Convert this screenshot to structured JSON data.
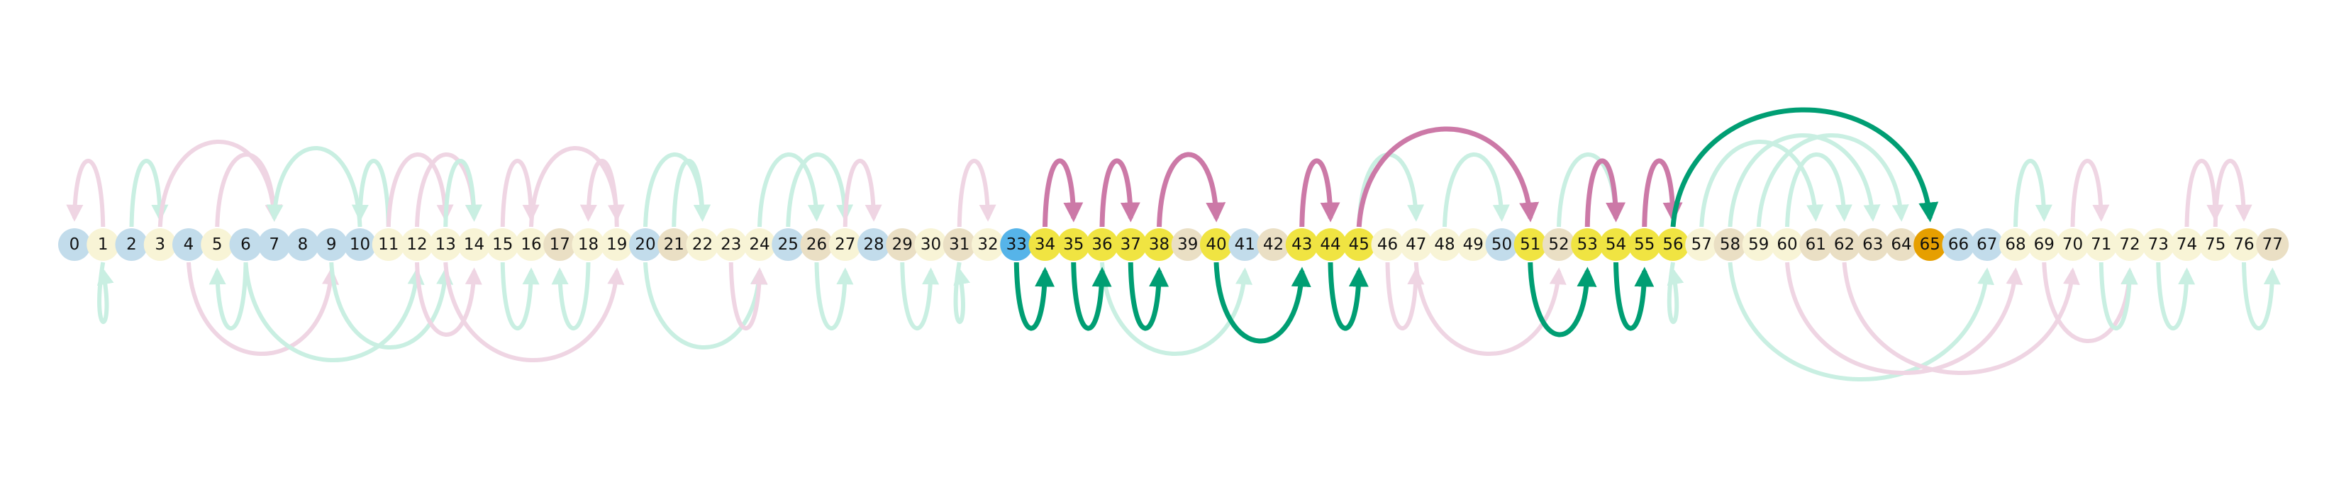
{
  "nodes": [
    {
      "label": "0",
      "type": "blue"
    },
    {
      "label": "1",
      "type": "cream"
    },
    {
      "label": "2",
      "type": "blue"
    },
    {
      "label": "3",
      "type": "cream"
    },
    {
      "label": "4",
      "type": "blue"
    },
    {
      "label": "5",
      "type": "cream"
    },
    {
      "label": "6",
      "type": "blue"
    },
    {
      "label": "7",
      "type": "blue"
    },
    {
      "label": "8",
      "type": "blue"
    },
    {
      "label": "9",
      "type": "blue"
    },
    {
      "label": "10",
      "type": "blue"
    },
    {
      "label": "11",
      "type": "cream"
    },
    {
      "label": "12",
      "type": "cream"
    },
    {
      "label": "13",
      "type": "cream"
    },
    {
      "label": "14",
      "type": "cream"
    },
    {
      "label": "15",
      "type": "cream"
    },
    {
      "label": "16",
      "type": "cream"
    },
    {
      "label": "17",
      "type": "tan"
    },
    {
      "label": "18",
      "type": "cream"
    },
    {
      "label": "19",
      "type": "cream"
    },
    {
      "label": "20",
      "type": "blue"
    },
    {
      "label": "21",
      "type": "tan"
    },
    {
      "label": "22",
      "type": "cream"
    },
    {
      "label": "23",
      "type": "cream"
    },
    {
      "label": "24",
      "type": "cream"
    },
    {
      "label": "25",
      "type": "blue"
    },
    {
      "label": "26",
      "type": "tan"
    },
    {
      "label": "27",
      "type": "cream"
    },
    {
      "label": "28",
      "type": "blue"
    },
    {
      "label": "29",
      "type": "tan"
    },
    {
      "label": "30",
      "type": "cream"
    },
    {
      "label": "31",
      "type": "tan"
    },
    {
      "label": "32",
      "type": "cream"
    },
    {
      "label": "33",
      "type": "start"
    },
    {
      "label": "34",
      "type": "yellow"
    },
    {
      "label": "35",
      "type": "yellow"
    },
    {
      "label": "36",
      "type": "yellow"
    },
    {
      "label": "37",
      "type": "yellow"
    },
    {
      "label": "38",
      "type": "yellow"
    },
    {
      "label": "39",
      "type": "tan"
    },
    {
      "label": "40",
      "type": "yellow"
    },
    {
      "label": "41",
      "type": "blue"
    },
    {
      "label": "42",
      "type": "tan"
    },
    {
      "label": "43",
      "type": "yellow"
    },
    {
      "label": "44",
      "type": "yellow"
    },
    {
      "label": "45",
      "type": "yellow"
    },
    {
      "label": "46",
      "type": "cream"
    },
    {
      "label": "47",
      "type": "cream"
    },
    {
      "label": "48",
      "type": "cream"
    },
    {
      "label": "49",
      "type": "cream"
    },
    {
      "label": "50",
      "type": "blue"
    },
    {
      "label": "51",
      "type": "yellow"
    },
    {
      "label": "52",
      "type": "tan"
    },
    {
      "label": "53",
      "type": "yellow"
    },
    {
      "label": "54",
      "type": "yellow"
    },
    {
      "label": "55",
      "type": "yellow"
    },
    {
      "label": "56",
      "type": "yellow"
    },
    {
      "label": "57",
      "type": "cream"
    },
    {
      "label": "58",
      "type": "tan"
    },
    {
      "label": "59",
      "type": "cream"
    },
    {
      "label": "60",
      "type": "cream"
    },
    {
      "label": "61",
      "type": "tan"
    },
    {
      "label": "62",
      "type": "tan"
    },
    {
      "label": "63",
      "type": "tan"
    },
    {
      "label": "64",
      "type": "tan"
    },
    {
      "label": "65",
      "type": "goal"
    },
    {
      "label": "66",
      "type": "blue"
    },
    {
      "label": "67",
      "type": "blue"
    },
    {
      "label": "68",
      "type": "cream"
    },
    {
      "label": "69",
      "type": "cream"
    },
    {
      "label": "70",
      "type": "cream"
    },
    {
      "label": "71",
      "type": "cream"
    },
    {
      "label": "72",
      "type": "cream"
    },
    {
      "label": "73",
      "type": "cream"
    },
    {
      "label": "74",
      "type": "cream"
    },
    {
      "label": "75",
      "type": "cream"
    },
    {
      "label": "76",
      "type": "cream"
    },
    {
      "label": "77",
      "type": "tan"
    }
  ],
  "colors": {
    "blue": "#c2dceb",
    "cream": "#f8f4d6",
    "tan": "#eadfc4",
    "yellow": "#f0e442",
    "start": "#56b4e9",
    "goal": "#e69f00",
    "ladder": "#009e73",
    "snake": "#cc79a7",
    "ladder_faded": "#c9efe2",
    "snake_faded": "#efd5e3"
  },
  "edges": [
    {
      "from": 1,
      "to": 0,
      "kind": "snake",
      "active": false
    },
    {
      "from": 2,
      "to": 3,
      "kind": "ladder",
      "active": false
    },
    {
      "from": 5,
      "to": 7,
      "kind": "snake",
      "active": false
    },
    {
      "from": 3,
      "to": 7,
      "kind": "snake",
      "active": false
    },
    {
      "from": 10,
      "to": 7,
      "kind": "ladder",
      "active": false
    },
    {
      "from": 11,
      "to": 10,
      "kind": "ladder",
      "active": false
    },
    {
      "from": 11,
      "to": 13,
      "kind": "snake",
      "active": false
    },
    {
      "from": 12,
      "to": 14,
      "kind": "snake",
      "active": false
    },
    {
      "from": 13,
      "to": 14,
      "kind": "ladder",
      "active": false
    },
    {
      "from": 15,
      "to": 16,
      "kind": "snake",
      "active": false
    },
    {
      "from": 16,
      "to": 19,
      "kind": "snake",
      "active": false
    },
    {
      "from": 19,
      "to": 18,
      "kind": "snake",
      "active": false
    },
    {
      "from": 20,
      "to": 22,
      "kind": "ladder",
      "active": false
    },
    {
      "from": 21,
      "to": 22,
      "kind": "ladder",
      "active": false
    },
    {
      "from": 24,
      "to": 26,
      "kind": "ladder",
      "active": false
    },
    {
      "from": 25,
      "to": 27,
      "kind": "ladder",
      "active": false
    },
    {
      "from": 27,
      "to": 28,
      "kind": "snake",
      "active": false
    },
    {
      "from": 31,
      "to": 32,
      "kind": "snake",
      "active": false
    },
    {
      "from": 45,
      "to": 47,
      "kind": "ladder",
      "active": false
    },
    {
      "from": 48,
      "to": 50,
      "kind": "ladder",
      "active": false
    },
    {
      "from": 52,
      "to": 54,
      "kind": "ladder",
      "active": false
    },
    {
      "from": 57,
      "to": 61,
      "kind": "ladder",
      "active": false
    },
    {
      "from": 58,
      "to": 63,
      "kind": "ladder",
      "active": false
    },
    {
      "from": 59,
      "to": 64,
      "kind": "ladder",
      "active": false
    },
    {
      "from": 60,
      "to": 62,
      "kind": "ladder",
      "active": false
    },
    {
      "from": 68,
      "to": 69,
      "kind": "ladder",
      "active": false
    },
    {
      "from": 70,
      "to": 71,
      "kind": "snake",
      "active": false
    },
    {
      "from": 74,
      "to": 75,
      "kind": "snake",
      "active": false
    },
    {
      "from": 75,
      "to": 76,
      "kind": "snake",
      "active": false
    },
    {
      "from": 1,
      "to": 1,
      "kind": "ladder",
      "active": false,
      "below": true
    },
    {
      "from": 6,
      "to": 5,
      "kind": "ladder",
      "active": false,
      "below": true
    },
    {
      "from": 4,
      "to": 9,
      "kind": "snake",
      "active": false,
      "below": true
    },
    {
      "from": 6,
      "to": 12,
      "kind": "ladder",
      "active": false,
      "below": true
    },
    {
      "from": 9,
      "to": 13,
      "kind": "ladder",
      "active": false,
      "below": true
    },
    {
      "from": 12,
      "to": 14,
      "kind": "snake",
      "active": false,
      "below": true
    },
    {
      "from": 13,
      "to": 19,
      "kind": "snake",
      "active": false,
      "below": true
    },
    {
      "from": 15,
      "to": 16,
      "kind": "ladder",
      "active": false,
      "below": true
    },
    {
      "from": 18,
      "to": 17,
      "kind": "ladder",
      "active": false,
      "below": true
    },
    {
      "from": 20,
      "to": 24,
      "kind": "ladder",
      "active": false,
      "below": true
    },
    {
      "from": 23,
      "to": 24,
      "kind": "snake",
      "active": false,
      "below": true
    },
    {
      "from": 26,
      "to": 27,
      "kind": "ladder",
      "active": false,
      "below": true
    },
    {
      "from": 29,
      "to": 30,
      "kind": "ladder",
      "active": false,
      "below": true
    },
    {
      "from": 31,
      "to": 31,
      "kind": "ladder",
      "active": false,
      "below": true
    },
    {
      "from": 36,
      "to": 41,
      "kind": "ladder",
      "active": false,
      "below": true
    },
    {
      "from": 46,
      "to": 47,
      "kind": "snake",
      "active": false,
      "below": true
    },
    {
      "from": 47,
      "to": 52,
      "kind": "snake",
      "active": false,
      "below": true
    },
    {
      "from": 56,
      "to": 56,
      "kind": "ladder",
      "active": false,
      "below": true
    },
    {
      "from": 58,
      "to": 67,
      "kind": "ladder",
      "active": false,
      "below": true
    },
    {
      "from": 60,
      "to": 68,
      "kind": "snake",
      "active": false,
      "below": true
    },
    {
      "from": 62,
      "to": 70,
      "kind": "snake",
      "active": false,
      "below": true
    },
    {
      "from": 69,
      "to": 72,
      "kind": "snake",
      "active": false,
      "below": true
    },
    {
      "from": 71,
      "to": 72,
      "kind": "ladder",
      "active": false,
      "below": true
    },
    {
      "from": 73,
      "to": 74,
      "kind": "ladder",
      "active": false,
      "below": true
    },
    {
      "from": 76,
      "to": 77,
      "kind": "ladder",
      "active": false,
      "below": true
    },
    {
      "from": 33,
      "to": 34,
      "kind": "ladder",
      "active": true,
      "below": true
    },
    {
      "from": 35,
      "to": 36,
      "kind": "ladder",
      "active": true,
      "below": true
    },
    {
      "from": 37,
      "to": 38,
      "kind": "ladder",
      "active": true,
      "below": true
    },
    {
      "from": 40,
      "to": 43,
      "kind": "ladder",
      "active": true,
      "below": true
    },
    {
      "from": 44,
      "to": 45,
      "kind": "ladder",
      "active": true,
      "below": true
    },
    {
      "from": 51,
      "to": 53,
      "kind": "ladder",
      "active": true,
      "below": true
    },
    {
      "from": 54,
      "to": 55,
      "kind": "ladder",
      "active": true,
      "below": true
    },
    {
      "from": 34,
      "to": 35,
      "kind": "snake",
      "active": true
    },
    {
      "from": 36,
      "to": 37,
      "kind": "snake",
      "active": true
    },
    {
      "from": 38,
      "to": 40,
      "kind": "snake",
      "active": true
    },
    {
      "from": 43,
      "to": 44,
      "kind": "snake",
      "active": true
    },
    {
      "from": 45,
      "to": 51,
      "kind": "snake",
      "active": true
    },
    {
      "from": 53,
      "to": 54,
      "kind": "snake",
      "active": true
    },
    {
      "from": 55,
      "to": 56,
      "kind": "snake",
      "active": true
    },
    {
      "from": 56,
      "to": 65,
      "kind": "ladder",
      "active": true
    }
  ]
}
